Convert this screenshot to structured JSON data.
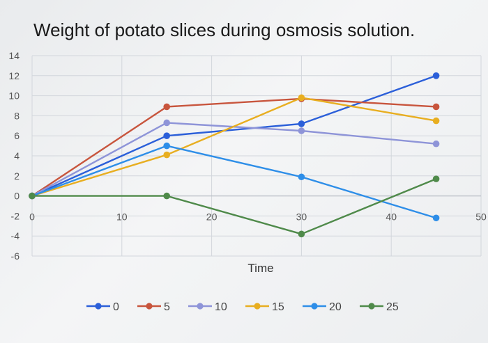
{
  "chart_data": {
    "type": "line",
    "title": "Weight of potato slices during osmosis solution.",
    "xlabel": "Time",
    "ylabel": "",
    "xlim": [
      0,
      50
    ],
    "ylim": [
      -6,
      14
    ],
    "x_ticks": [
      "0",
      "10",
      "20",
      "30",
      "40",
      "50"
    ],
    "y_ticks": [
      "14",
      "12",
      "10",
      "8",
      "6",
      "4",
      "2",
      "0",
      "-2",
      "-4",
      "-6"
    ],
    "grid": true,
    "legend_position": "bottom",
    "series": [
      {
        "name": "0",
        "color": "#2b5fd9",
        "points": [
          [
            0,
            0
          ],
          [
            15,
            6
          ],
          [
            30,
            7.2
          ],
          [
            45,
            12
          ]
        ]
      },
      {
        "name": "5",
        "color": "#c8553d",
        "points": [
          [
            0,
            0
          ],
          [
            15,
            8.9
          ],
          [
            30,
            9.7
          ],
          [
            45,
            8.9
          ]
        ]
      },
      {
        "name": "10",
        "color": "#8e94d8",
        "points": [
          [
            0,
            0
          ],
          [
            15,
            7.3
          ],
          [
            30,
            6.5
          ],
          [
            45,
            5.2
          ]
        ]
      },
      {
        "name": "15",
        "color": "#e8ae20",
        "points": [
          [
            0,
            0
          ],
          [
            15,
            4.1
          ],
          [
            30,
            9.8
          ],
          [
            45,
            7.5
          ]
        ]
      },
      {
        "name": "20",
        "color": "#2e8ee8",
        "points": [
          [
            0,
            0
          ],
          [
            15,
            5
          ],
          [
            30,
            1.9
          ],
          [
            45,
            -2.2
          ]
        ]
      },
      {
        "name": "25",
        "color": "#4f8a4a",
        "points": [
          [
            0,
            0
          ],
          [
            15,
            0
          ],
          [
            30,
            -3.8
          ],
          [
            45,
            1.7
          ]
        ]
      }
    ]
  }
}
